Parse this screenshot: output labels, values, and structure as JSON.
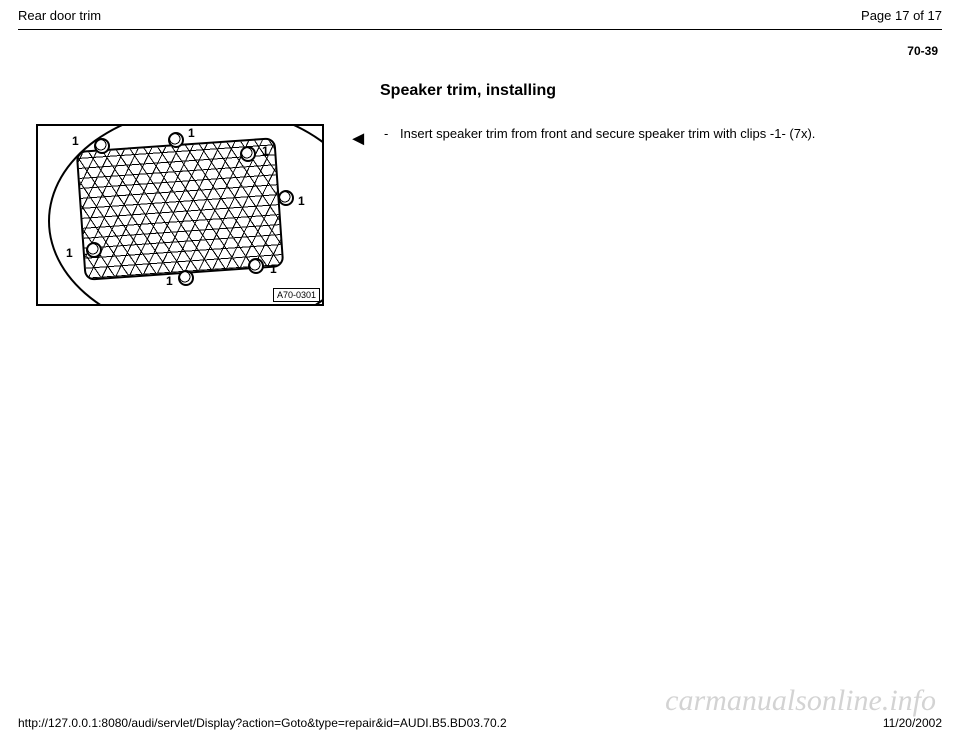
{
  "header": {
    "title": "Rear door trim",
    "page_label": "Page 17 of 17"
  },
  "page_ref": "70-39",
  "section_title": "Speaker trim, installing",
  "instruction": {
    "text": "Insert speaker trim from front and secure speaker trim with clips -1- (7x)."
  },
  "figure": {
    "id": "A70-0301",
    "clip_labels": [
      "1",
      "1",
      "1",
      "1",
      "1",
      "1",
      "1"
    ]
  },
  "footer": {
    "url": "http://127.0.0.1:8080/audi/servlet/Display?action=Goto&type=repair&id=AUDI.B5.BD03.70.2",
    "date": "11/20/2002"
  },
  "watermark": "carmanualsonline.info",
  "colors": {
    "text": "#000000",
    "background": "#ffffff",
    "watermark": "#cfcfcf",
    "rule": "#000000"
  }
}
